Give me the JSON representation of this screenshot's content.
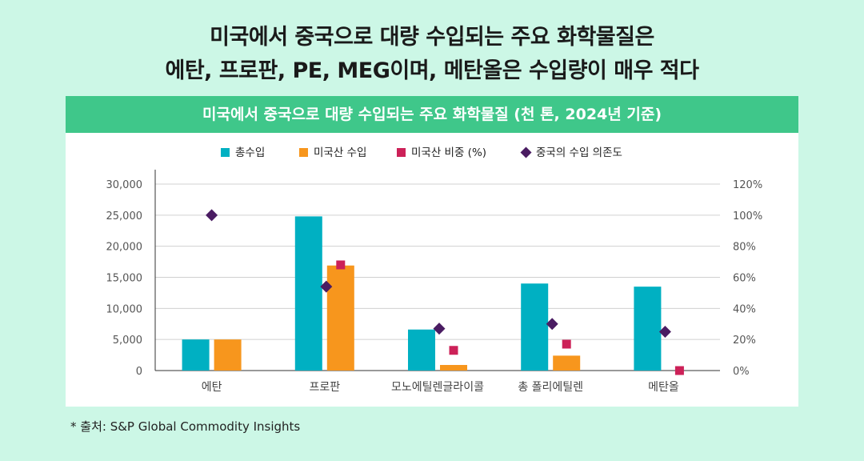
{
  "headline": {
    "line1": "미국에서 중국으로 대량 수입되는 주요 화학물질은",
    "line2": "에탄, 프로판, PE, MEG이며, 메탄올은 수입량이 매우 적다"
  },
  "banner": {
    "title": "미국에서 중국으로 대량 수입되는 주요 화학물질 (천 톤, 2024년 기준)"
  },
  "source": "* 출처: S&P Global Commodity Insights",
  "colors": {
    "total": "#00b0c2",
    "us_import": "#f7961d",
    "us_share": "#cc2158",
    "dependence": "#4a1c62"
  },
  "chart_data": {
    "type": "bar",
    "categories": [
      "에탄",
      "프로판",
      "모노에틸렌글라이콜",
      "총 폴리에틸렌",
      "메탄올"
    ],
    "series": [
      {
        "name": "총수입",
        "kind": "bar",
        "axis": "left",
        "values": [
          5000,
          24800,
          6600,
          14000,
          13500
        ]
      },
      {
        "name": "미국산 수입",
        "kind": "bar",
        "axis": "left",
        "values": [
          5000,
          16900,
          900,
          2400,
          0
        ]
      },
      {
        "name": "미국산 비중 (%)",
        "kind": "square",
        "axis": "right",
        "values": [
          null,
          68,
          13,
          17,
          0
        ]
      },
      {
        "name": "중국의 수입 의존도",
        "kind": "diamond",
        "axis": "right",
        "values": [
          100,
          54,
          27,
          30,
          25
        ]
      }
    ],
    "ylim_left": [
      0,
      30000
    ],
    "yticks_left": [
      "0",
      "5,000",
      "10,000",
      "15,000",
      "20,000",
      "25,000",
      "30,000"
    ],
    "ylim_right": [
      0,
      120
    ],
    "yticks_right": [
      "0%",
      "20%",
      "40%",
      "60%",
      "80%",
      "100%",
      "120%"
    ],
    "grid": true,
    "legend_position": "top"
  }
}
